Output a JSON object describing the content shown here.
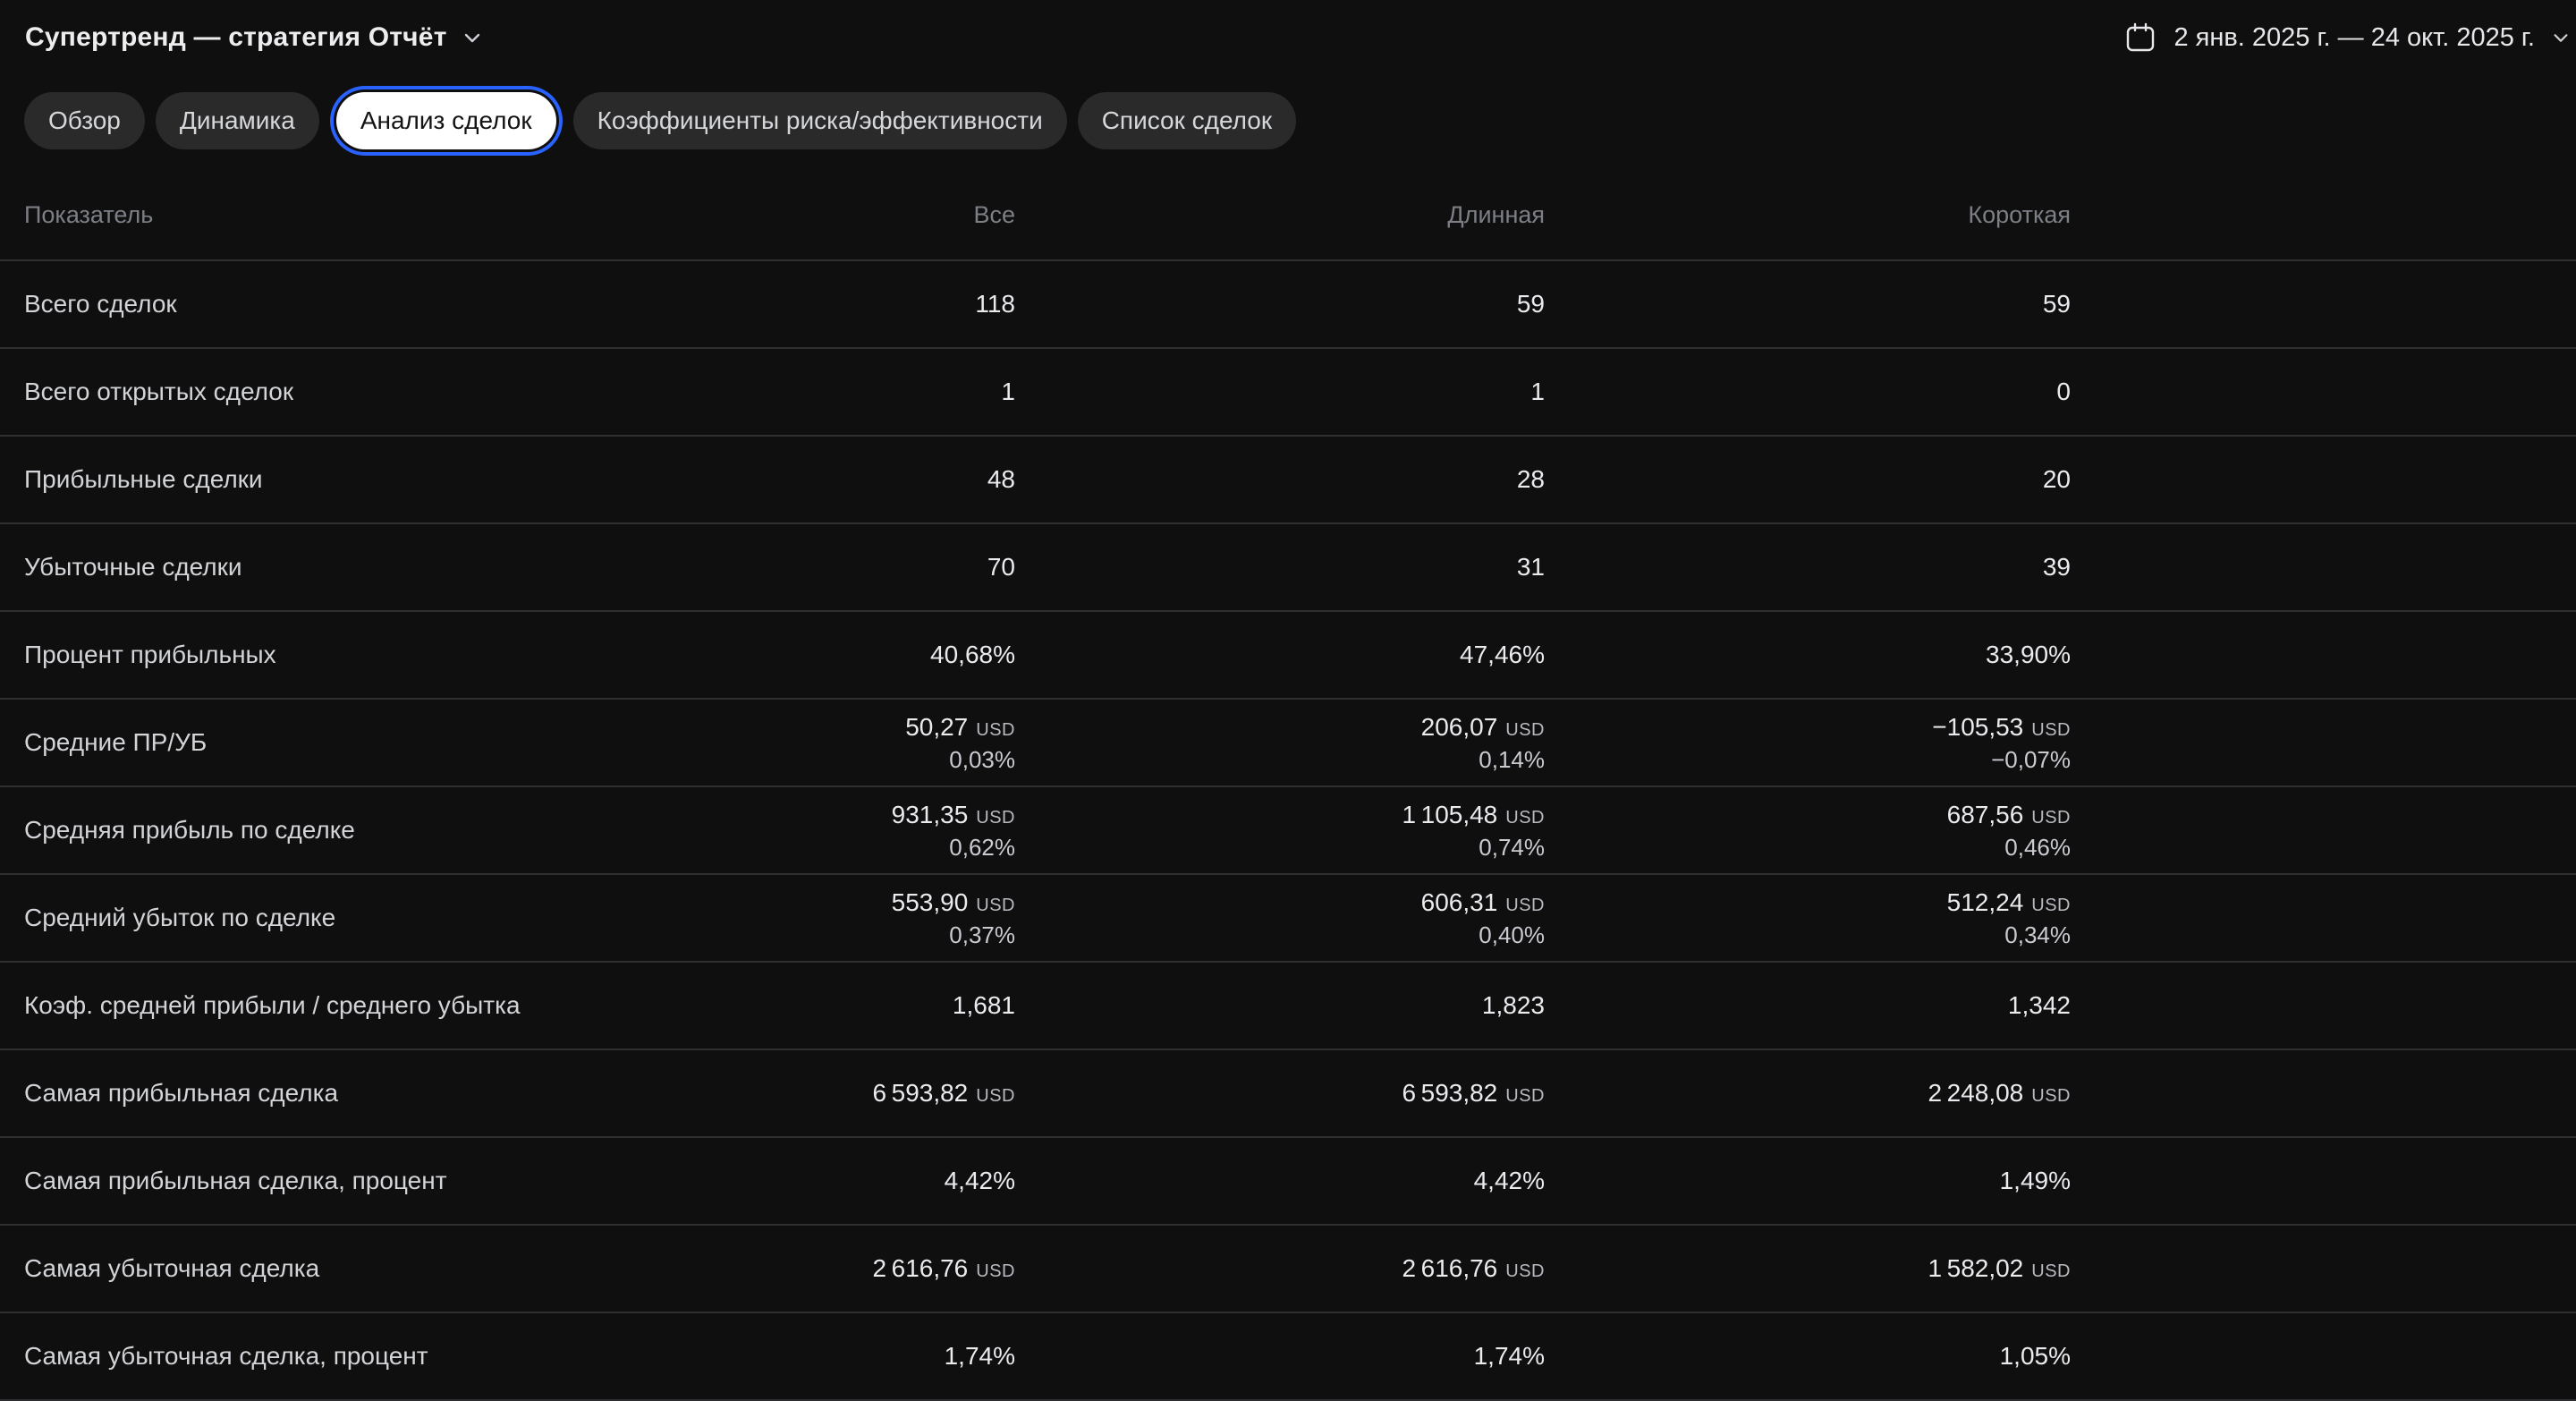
{
  "header": {
    "title": "Супертренд — стратегия Отчёт",
    "date_range": "2 янв. 2025 г. — 24 окт. 2025 г."
  },
  "tabs": [
    {
      "label": "Обзор",
      "selected": false
    },
    {
      "label": "Динамика",
      "selected": false
    },
    {
      "label": "Анализ сделок",
      "selected": true
    },
    {
      "label": "Коэффициенты риска/эффективности",
      "selected": false
    },
    {
      "label": "Список сделок",
      "selected": false
    }
  ],
  "table": {
    "columns": [
      "Показатель",
      "Все",
      "Длинная",
      "Короткая"
    ],
    "rows": [
      {
        "label": "Всего сделок",
        "cells": [
          {
            "v": "118"
          },
          {
            "v": "59"
          },
          {
            "v": "59"
          }
        ]
      },
      {
        "label": "Всего открытых сделок",
        "cells": [
          {
            "v": "1"
          },
          {
            "v": "1"
          },
          {
            "v": "0"
          }
        ]
      },
      {
        "label": "Прибыльные сделки",
        "cells": [
          {
            "v": "48"
          },
          {
            "v": "28"
          },
          {
            "v": "20"
          }
        ]
      },
      {
        "label": "Убыточные сделки",
        "cells": [
          {
            "v": "70"
          },
          {
            "v": "31"
          },
          {
            "v": "39"
          }
        ]
      },
      {
        "label": "Процент прибыльных",
        "cells": [
          {
            "v": "40,68%"
          },
          {
            "v": "47,46%"
          },
          {
            "v": "33,90%"
          }
        ]
      },
      {
        "label": "Средние ПР/УБ",
        "cells": [
          {
            "v": "50,27",
            "cur": "USD",
            "pct": "0,03%"
          },
          {
            "v": "206,07",
            "cur": "USD",
            "pct": "0,14%"
          },
          {
            "v": "−105,53",
            "cur": "USD",
            "pct": "−0,07%"
          }
        ]
      },
      {
        "label": "Средняя прибыль по сделке",
        "cells": [
          {
            "v": "931,35",
            "cur": "USD",
            "pct": "0,62%"
          },
          {
            "v": "1 105,48",
            "cur": "USD",
            "pct": "0,74%"
          },
          {
            "v": "687,56",
            "cur": "USD",
            "pct": "0,46%"
          }
        ]
      },
      {
        "label": "Средний убыток по сделке",
        "cells": [
          {
            "v": "553,90",
            "cur": "USD",
            "pct": "0,37%"
          },
          {
            "v": "606,31",
            "cur": "USD",
            "pct": "0,40%"
          },
          {
            "v": "512,24",
            "cur": "USD",
            "pct": "0,34%"
          }
        ]
      },
      {
        "label": "Коэф. средней прибыли / среднего убытка",
        "cells": [
          {
            "v": "1,681"
          },
          {
            "v": "1,823"
          },
          {
            "v": "1,342"
          }
        ]
      },
      {
        "label": "Самая прибыльная сделка",
        "cells": [
          {
            "v": "6 593,82",
            "cur": "USD"
          },
          {
            "v": "6 593,82",
            "cur": "USD"
          },
          {
            "v": "2 248,08",
            "cur": "USD"
          }
        ]
      },
      {
        "label": "Самая прибыльная сделка, процент",
        "cells": [
          {
            "v": "4,42%"
          },
          {
            "v": "4,42%"
          },
          {
            "v": "1,49%"
          }
        ]
      },
      {
        "label": "Самая убыточная сделка",
        "cells": [
          {
            "v": "2 616,76",
            "cur": "USD"
          },
          {
            "v": "2 616,76",
            "cur": "USD"
          },
          {
            "v": "1 582,02",
            "cur": "USD"
          }
        ]
      },
      {
        "label": "Самая убыточная сделка, процент",
        "cells": [
          {
            "v": "1,74%"
          },
          {
            "v": "1,74%"
          },
          {
            "v": "1,05%"
          }
        ]
      }
    ]
  },
  "icons": {
    "calendar": "calendar-icon",
    "chevron_down": "chevron-down-icon"
  },
  "colors": {
    "background": "#0f0f0f",
    "accent_blue": "#2962ff",
    "selected_tab_bg": "#ffffff",
    "separator": "#2f2f31",
    "header_text": "#7d7f86",
    "value_text": "#eaebee"
  }
}
